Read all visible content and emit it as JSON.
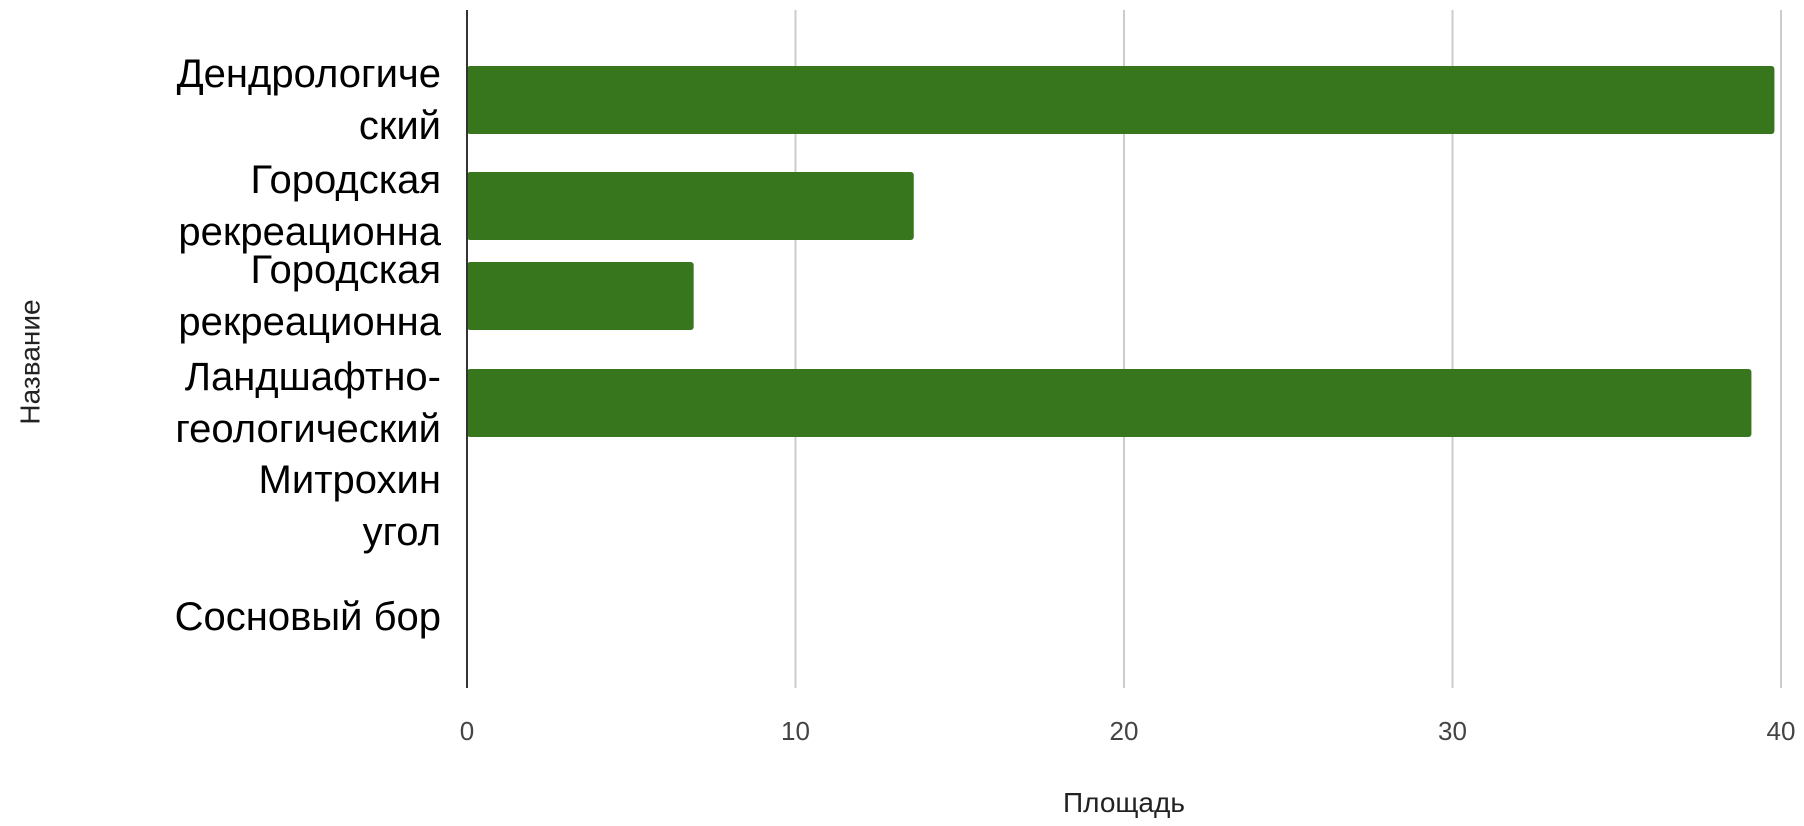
{
  "chart_data": {
    "type": "bar",
    "orientation": "horizontal",
    "categories": [
      [
        "Дендрологиче",
        "ский"
      ],
      [
        "Городская",
        "рекреационна"
      ],
      [
        "Городская",
        "рекреационна"
      ],
      [
        "Ландшафтно-",
        "геологический"
      ],
      [
        "Митрохин",
        "угол"
      ],
      [
        "Сосновый бор"
      ]
    ],
    "values": [
      39.8,
      13.6,
      6.9,
      39.1,
      0,
      0
    ],
    "xlabel": "Площадь",
    "ylabel": "Название",
    "xlim": [
      0,
      40
    ],
    "xticks": [
      "0",
      "10",
      "20",
      "30",
      "40"
    ],
    "grid": true,
    "bar_color": "#38761d",
    "grid_color": "#cccccc",
    "axis_color": "#333333"
  }
}
